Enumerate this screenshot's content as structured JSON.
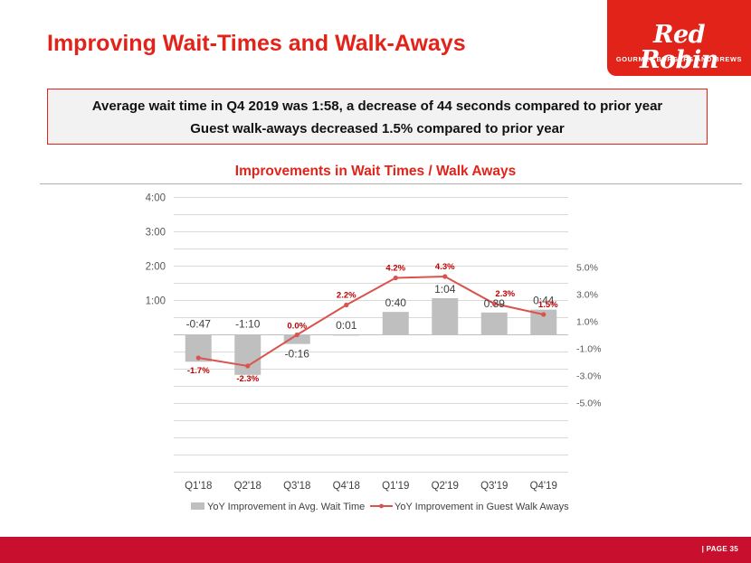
{
  "header": {
    "title": "Improving Wait-Times and Walk-Aways"
  },
  "logo": {
    "wordmark": "Red Robin",
    "tagline": "GOURMET BURGERS AND BREWS"
  },
  "callout": {
    "line1": "Average wait time in Q4 2019 was 1:58, a decrease of 44 seconds compared to prior year",
    "line2": "Guest walk-aways decreased 1.5% compared to prior year"
  },
  "footer": {
    "page": "| PAGE 35"
  },
  "colors": {
    "brand": "#e2231a",
    "bar": "#bfbfbf",
    "line": "#d9534f",
    "footer": "#c8102e"
  },
  "chart_data": {
    "type": "bar+line",
    "title": "Improvements in Wait Times / Walk Aways",
    "categories": [
      "Q1'18",
      "Q2'18",
      "Q3'18",
      "Q4'18",
      "Q1'19",
      "Q2'19",
      "Q3'19",
      "Q4'19"
    ],
    "left_axis": {
      "ticks": [
        "4:00",
        "3:00",
        "2:00",
        "1:00"
      ],
      "tick_seconds": [
        240,
        180,
        120,
        60
      ],
      "ylim_seconds": [
        -240,
        240
      ]
    },
    "right_axis": {
      "ticks": [
        "5.0%",
        "3.0%",
        "1.0%",
        "-1.0%",
        "-3.0%",
        "-5.0%"
      ],
      "tick_values": [
        5,
        3,
        1,
        -1,
        -3,
        -5
      ],
      "ylim": [
        -5,
        5
      ]
    },
    "grid": true,
    "legend_position": "bottom",
    "series": [
      {
        "name": "YoY Improvement in Avg. Wait Time",
        "kind": "bar",
        "axis": "left",
        "values_seconds": [
          -47,
          -70,
          -16,
          1,
          40,
          64,
          39,
          44
        ],
        "labels": [
          "-0:47",
          "-1:10",
          "-0:16",
          "0:01",
          "0:40",
          "1:04",
          "0:39",
          "0:44"
        ]
      },
      {
        "name": "YoY Improvement in Guest Walk Aways",
        "kind": "line",
        "axis": "right",
        "values": [
          -1.7,
          -2.3,
          0.0,
          2.2,
          4.2,
          4.3,
          2.3,
          1.5
        ],
        "labels": [
          "-1.7%",
          "-2.3%",
          "0.0%",
          "2.2%",
          "4.2%",
          "4.3%",
          "2.3%",
          "1.5%"
        ]
      }
    ]
  }
}
